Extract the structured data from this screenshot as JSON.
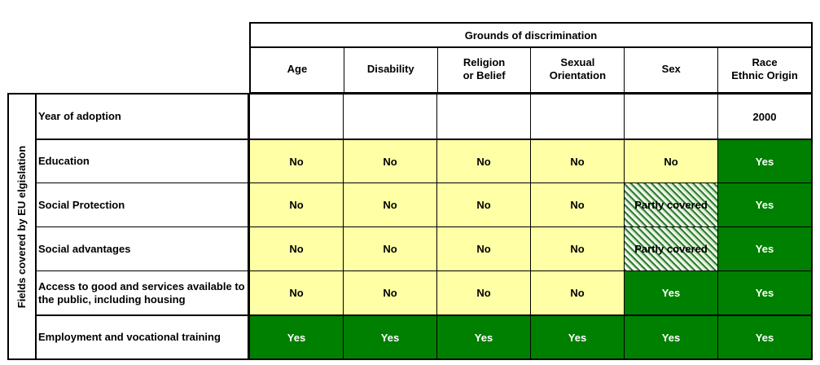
{
  "title": "Grounds of discrimination",
  "side_label": "Fields covered by EU elgislation",
  "columns": [
    "Age",
    "Disability",
    "Religion\nor Belief",
    "Sexual\nOrientation",
    "Sex",
    "Race\nEthnic Origin"
  ],
  "rows": [
    {
      "label": "Year of adoption",
      "cells": [
        "",
        "",
        "",
        "",
        "",
        "2000"
      ]
    },
    {
      "label": "Education",
      "cells": [
        "No",
        "No",
        "No",
        "No",
        "No",
        "Yes"
      ]
    },
    {
      "label": "Social Protection",
      "cells": [
        "No",
        "No",
        "No",
        "No",
        "Partly covered",
        "Yes"
      ]
    },
    {
      "label": "Social advantages",
      "cells": [
        "No",
        "No",
        "No",
        "No",
        "Partly covered",
        "Yes"
      ]
    },
    {
      "label": "Access to good and services available to the public, including housing",
      "cells": [
        "No",
        "No",
        "No",
        "No",
        "Yes",
        "Yes"
      ]
    },
    {
      "label": "Employment and vocational training",
      "cells": [
        "Yes",
        "Yes",
        "Yes",
        "Yes",
        "Yes",
        "Yes"
      ]
    }
  ],
  "colors": {
    "no": "#ffffa6",
    "yes": "#008000",
    "hatch": "#2e7d3a"
  }
}
